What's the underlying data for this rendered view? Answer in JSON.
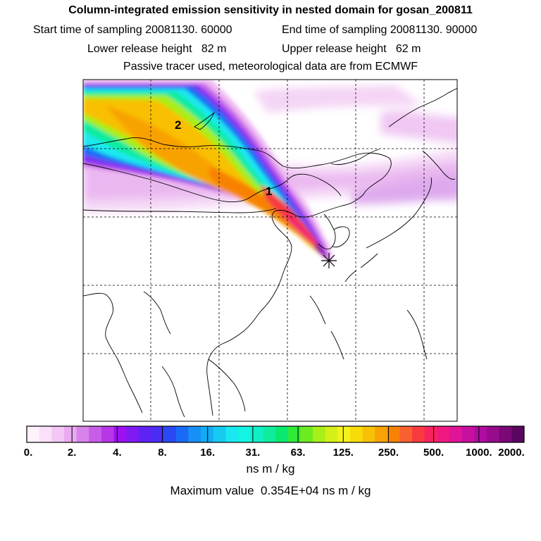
{
  "title": "Column-integrated emission sensitivity in nested domain for gosan_200811",
  "sampling": {
    "start_label": "Start time of sampling",
    "start_value": "20081130. 60000",
    "end_label": "End time of sampling",
    "end_value": "20081130. 90000"
  },
  "release": {
    "lower_label": "Lower release height",
    "lower_value": "82 m",
    "upper_label": "Upper release height",
    "upper_value": "62 m"
  },
  "info_line": "Passive tracer used, meteorological data are from ECMWF",
  "map": {
    "labels": [
      {
        "text": "2"
      },
      {
        "text": "1"
      }
    ],
    "receptor_marker": "star-marker"
  },
  "colorbar": {
    "tick_labels": [
      "0.",
      "2.",
      "4.",
      "8.",
      "16.",
      "31.",
      "63.",
      "125.",
      "250.",
      "500.",
      "1000.",
      "2000."
    ],
    "colors": [
      "#fff2fc",
      "#fae0f8",
      "#f2c6f5",
      "#eaaaf0",
      "#d783ea",
      "#c85ee8",
      "#b736e8",
      "#9e10f0",
      "#7f1af2",
      "#5f22f4",
      "#4a2cf2",
      "#2a48f4",
      "#1a6af5",
      "#1690f4",
      "#12acf4",
      "#16caf2",
      "#1ae8f0",
      "#14f4e4",
      "#10f0c6",
      "#10ec9e",
      "#0ae870",
      "#30ea3a",
      "#6cec20",
      "#a8ee18",
      "#d4f018",
      "#f4f21a",
      "#f8dc0a",
      "#f8c006",
      "#f8a206",
      "#f88206",
      "#f86030",
      "#f83a40",
      "#f82260",
      "#f01880",
      "#e01498",
      "#c810a0",
      "#b00ca0",
      "#960c8c",
      "#7a0876",
      "#5a0660"
    ],
    "units": "ns m / kg"
  },
  "max_value": {
    "label": "Maximum value",
    "value": "0.354E+04 ns m / kg"
  }
}
